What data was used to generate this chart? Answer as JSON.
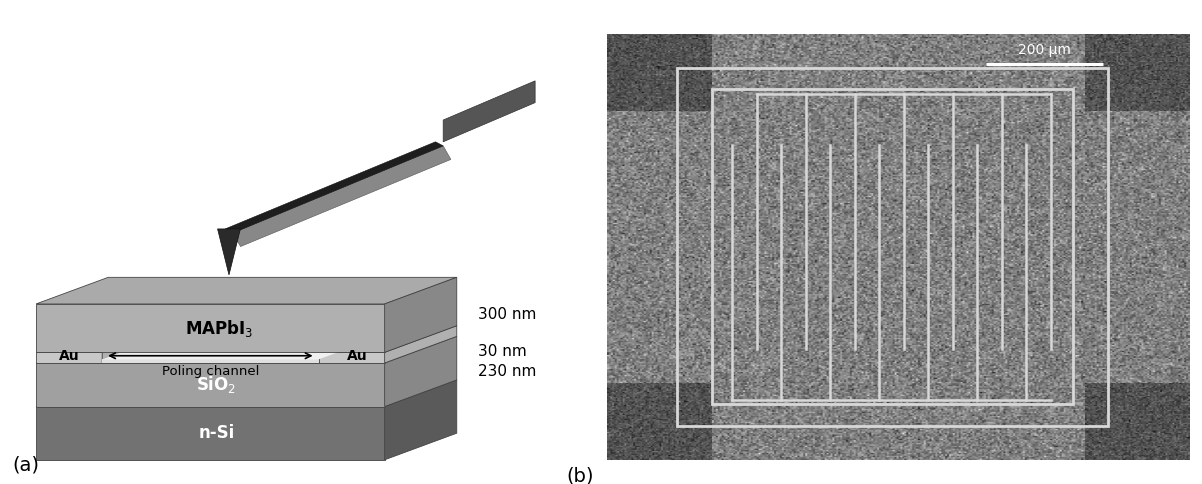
{
  "fig_width": 12.02,
  "fig_height": 4.84,
  "bg_color": "#ffffff",
  "label_a": "(a)",
  "label_b": "(b)",
  "layers": {
    "mapbi3_top": "#aaaaaa",
    "mapbi3_face": "#b0b0b0",
    "mapbi3_side": "#888888",
    "au_top": "#d0d0d0",
    "au_face": "#c8c8c8",
    "au_side": "#b0b0b0",
    "sio2_top": "#bebebe",
    "sio2_face": "#a0a0a0",
    "sio2_side": "#888888",
    "nsi_top": "#8a8a8a",
    "nsi_face": "#727272",
    "nsi_side": "#5a5a5a",
    "gap_top": "#e8e8e8",
    "gap_face": "#d8d8d8"
  },
  "annotations": {
    "mapbi3_label": "MAPbI$_3$",
    "au_left": "Au",
    "au_right": "Au",
    "poling_channel": "Poling channel",
    "sio2_label": "SiO$_2$",
    "nsi_label": "n-Si",
    "dim_300": "300 nm",
    "dim_30": "30 nm",
    "dim_230": "230 nm",
    "scalebar": "200 μm"
  }
}
